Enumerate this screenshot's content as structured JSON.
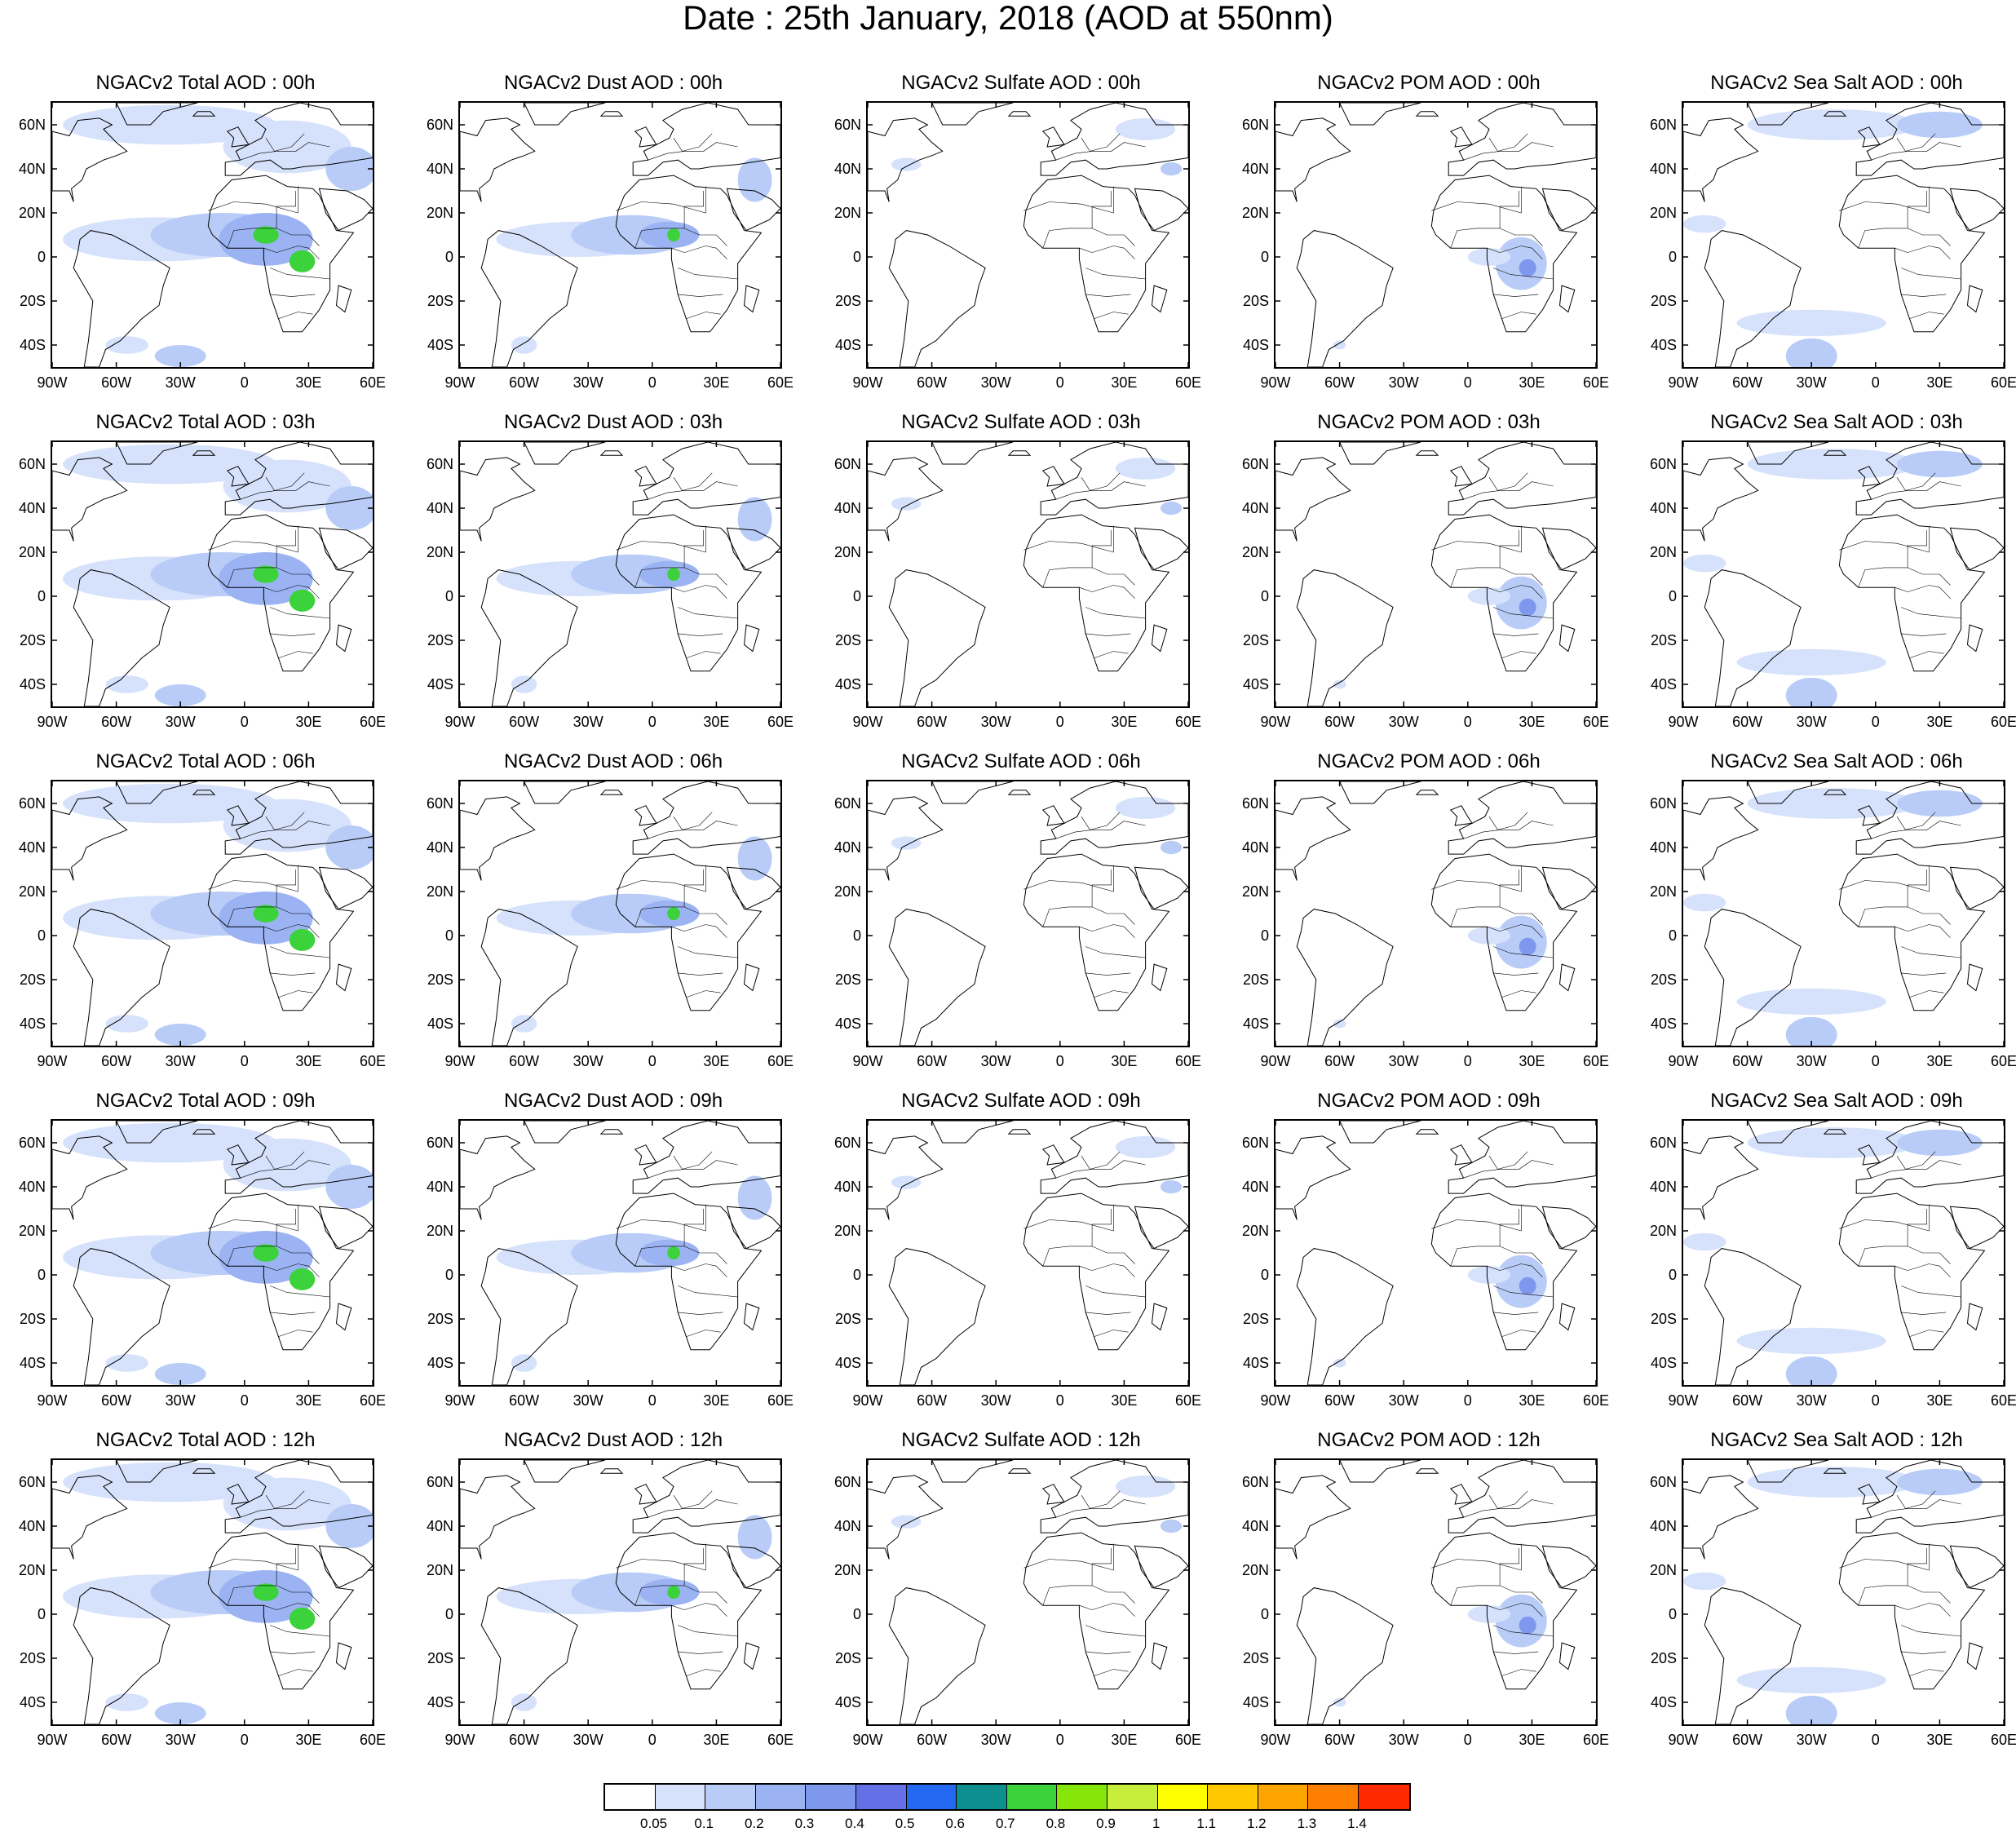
{
  "figure": {
    "title": "Date : 25th January, 2018 (AOD at 550nm)"
  },
  "axes": {
    "lat_labels": [
      "60N",
      "40N",
      "20N",
      "0",
      "20S",
      "40S"
    ],
    "lat_values": [
      60,
      40,
      20,
      0,
      -20,
      -40
    ],
    "lon_labels": [
      "90W",
      "60W",
      "30W",
      "0",
      "30E",
      "60E"
    ],
    "lon_values": [
      -90,
      -60,
      -30,
      0,
      30,
      60
    ],
    "lat_range": [
      -50,
      70
    ],
    "lon_range": [
      -90,
      60
    ]
  },
  "panels": [
    [
      "NGACv2 Total AOD : 00h",
      "NGACv2 Dust AOD : 00h",
      "NGACv2 Sulfate AOD : 00h",
      "NGACv2 POM AOD : 00h",
      "NGACv2 Sea Salt AOD : 00h"
    ],
    [
      "NGACv2 Total AOD : 03h",
      "NGACv2 Dust AOD : 03h",
      "NGACv2 Sulfate AOD : 03h",
      "NGACv2 POM AOD : 03h",
      "NGACv2 Sea Salt AOD : 03h"
    ],
    [
      "NGACv2 Total AOD : 06h",
      "NGACv2 Dust AOD : 06h",
      "NGACv2 Sulfate AOD : 06h",
      "NGACv2 POM AOD : 06h",
      "NGACv2 Sea Salt AOD : 06h"
    ],
    [
      "NGACv2 Total AOD : 09h",
      "NGACv2 Dust AOD : 09h",
      "NGACv2 Sulfate AOD : 09h",
      "NGACv2 POM AOD : 09h",
      "NGACv2 Sea Salt  AOD : 09h"
    ],
    [
      "NGACv2 Total AOD  : 12h",
      "NGACv2 Dust AOD : 12h",
      "NGACv2 Sulfate AOD : 12h",
      "NGACv2 POM  AOD : 12h",
      "NGACv2 Sea Salt  AOD : 12h"
    ]
  ],
  "colorbar": {
    "labels": [
      "0.05",
      "0.1",
      "0.2",
      "0.3",
      "0.4",
      "0.5",
      "0.6",
      "0.7",
      "0.8",
      "0.9",
      "1",
      "1.1",
      "1.2",
      "1.3",
      "1.4"
    ],
    "colors": [
      "#ffffff",
      "#d6e2fb",
      "#b8ccf7",
      "#9bb3f3",
      "#7e98ee",
      "#6370e6",
      "#2268f0",
      "#0e8f8f",
      "#3cd23c",
      "#86e60a",
      "#c8ee3c",
      "#ffff00",
      "#ffc800",
      "#ffa500",
      "#ff7f00",
      "#ff2a00"
    ]
  }
}
